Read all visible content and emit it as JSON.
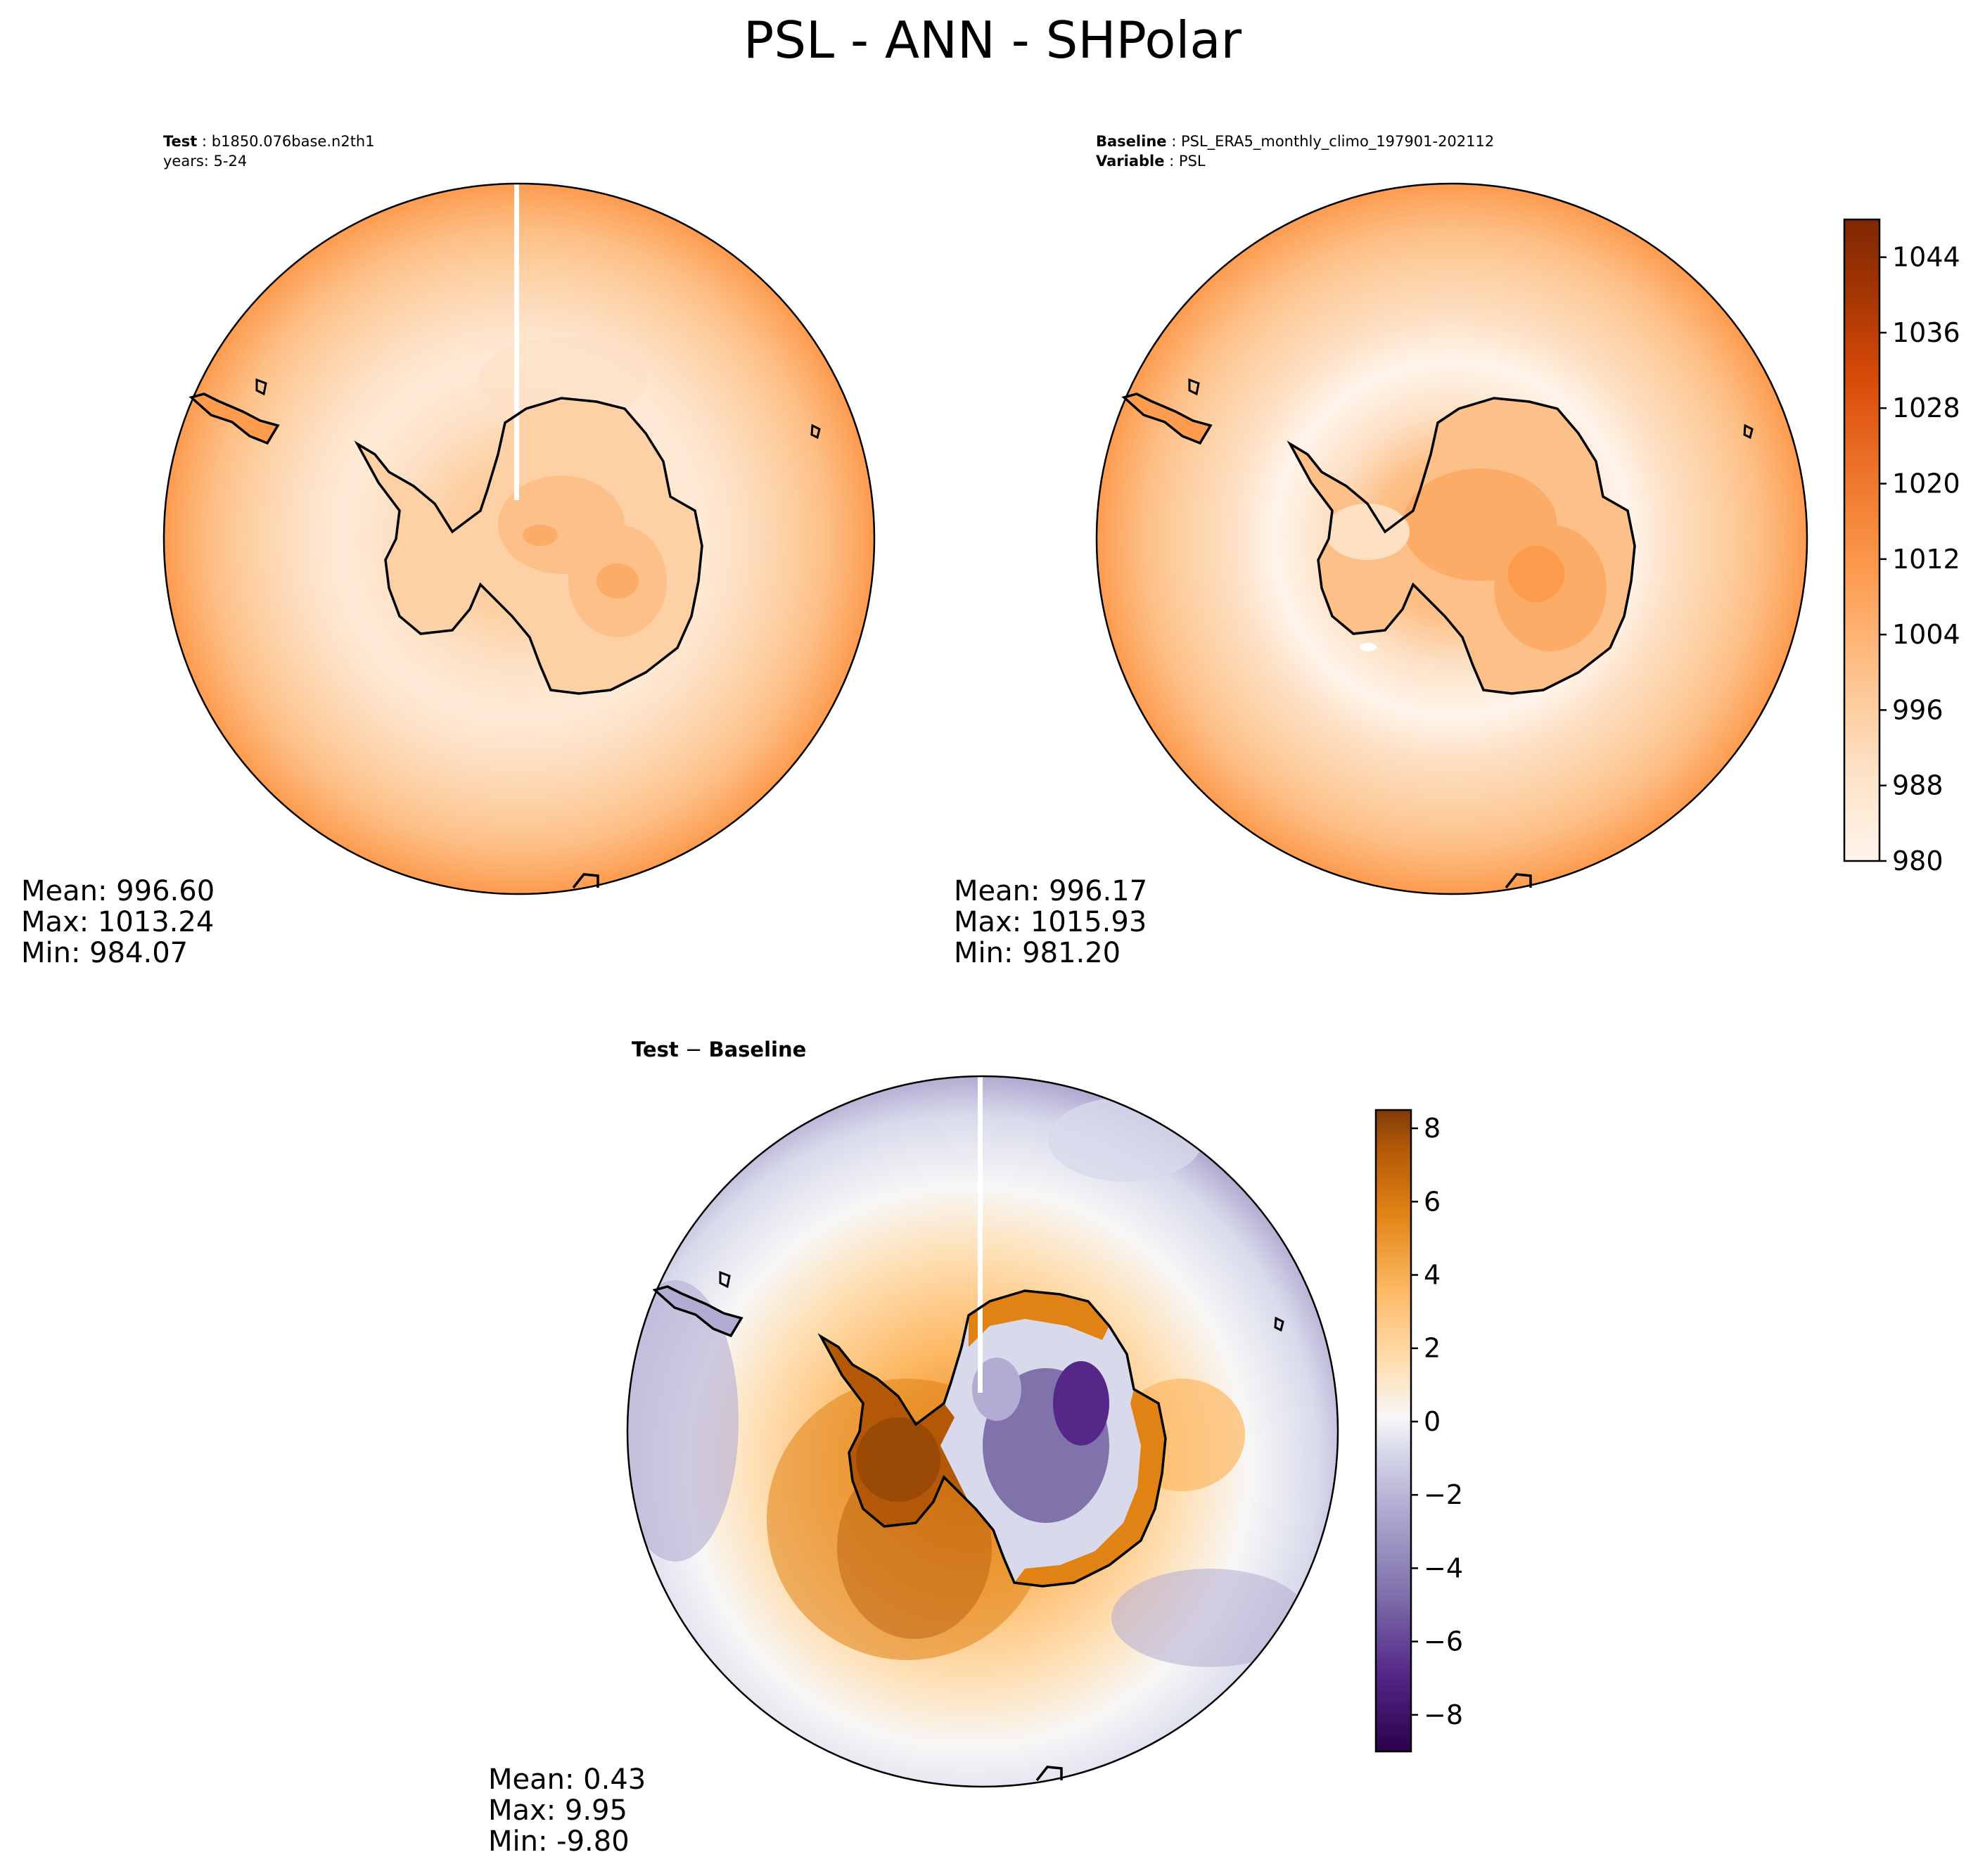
{
  "figure": {
    "title": "PSL - ANN - SHPolar"
  },
  "panels": {
    "test": {
      "label_bold": "Test",
      "label_value": "b1850.076base.n2th1",
      "years": "years: 5-24",
      "stats": {
        "mean": "Mean: 996.60",
        "max": "Max: 1013.24",
        "min": "Min: 984.07"
      }
    },
    "baseline": {
      "label_bold": "Baseline",
      "label_value": "PSL_ERA5_monthly_climo_197901-202112",
      "variable_bold": "Variable",
      "variable_value": "PSL",
      "stats": {
        "mean": "Mean: 996.17",
        "max": "Max: 1015.93",
        "min": "Min: 981.20"
      }
    },
    "diff": {
      "label_bold": "Test",
      "label_op": " − ",
      "label_bold2": "Baseline",
      "stats": {
        "mean": "Mean:  0.43",
        "max": "Max:  9.95",
        "min": "Min: -9.80"
      }
    }
  },
  "colors": {
    "oranges": [
      "#fff5eb",
      "#feebd7",
      "#fde0c4",
      "#fdd1a5",
      "#fdc088",
      "#fdac68",
      "#fd9b4f",
      "#f68a3b",
      "#ee762a",
      "#e5611a",
      "#d94b09",
      "#c24103",
      "#a63603",
      "#8c2d04",
      "#7f2704"
    ],
    "puor": [
      "#2d004b",
      "#542788",
      "#8073ac",
      "#b2abd2",
      "#d8daeb",
      "#f7f7f7",
      "#fee0b6",
      "#fdb863",
      "#e08214",
      "#b35806",
      "#7f3b08"
    ],
    "coast": "#000000"
  },
  "chart_data": [
    {
      "type": "heatmap",
      "name": "test",
      "colorbar": {
        "min": 980,
        "max": 1048,
        "ticks": [
          "980",
          "988",
          "996",
          "1004",
          "1012",
          "1020",
          "1028",
          "1036",
          "1044"
        ]
      },
      "mean": 996.6,
      "max": 1013.24,
      "min": 984.07
    },
    {
      "type": "heatmap",
      "name": "baseline",
      "colorbar": {
        "min": 980,
        "max": 1048,
        "ticks": [
          "980",
          "988",
          "996",
          "1004",
          "1012",
          "1020",
          "1028",
          "1036",
          "1044"
        ]
      },
      "mean": 996.17,
      "max": 1015.93,
      "min": 981.2
    },
    {
      "type": "heatmap",
      "name": "test-baseline",
      "colorbar": {
        "min": -9,
        "max": 8.5,
        "ticks": [
          "−8",
          "−6",
          "−4",
          "−2",
          "0",
          "2",
          "4",
          "6",
          "8"
        ]
      },
      "mean": 0.43,
      "max": 9.95,
      "min": -9.8
    }
  ]
}
